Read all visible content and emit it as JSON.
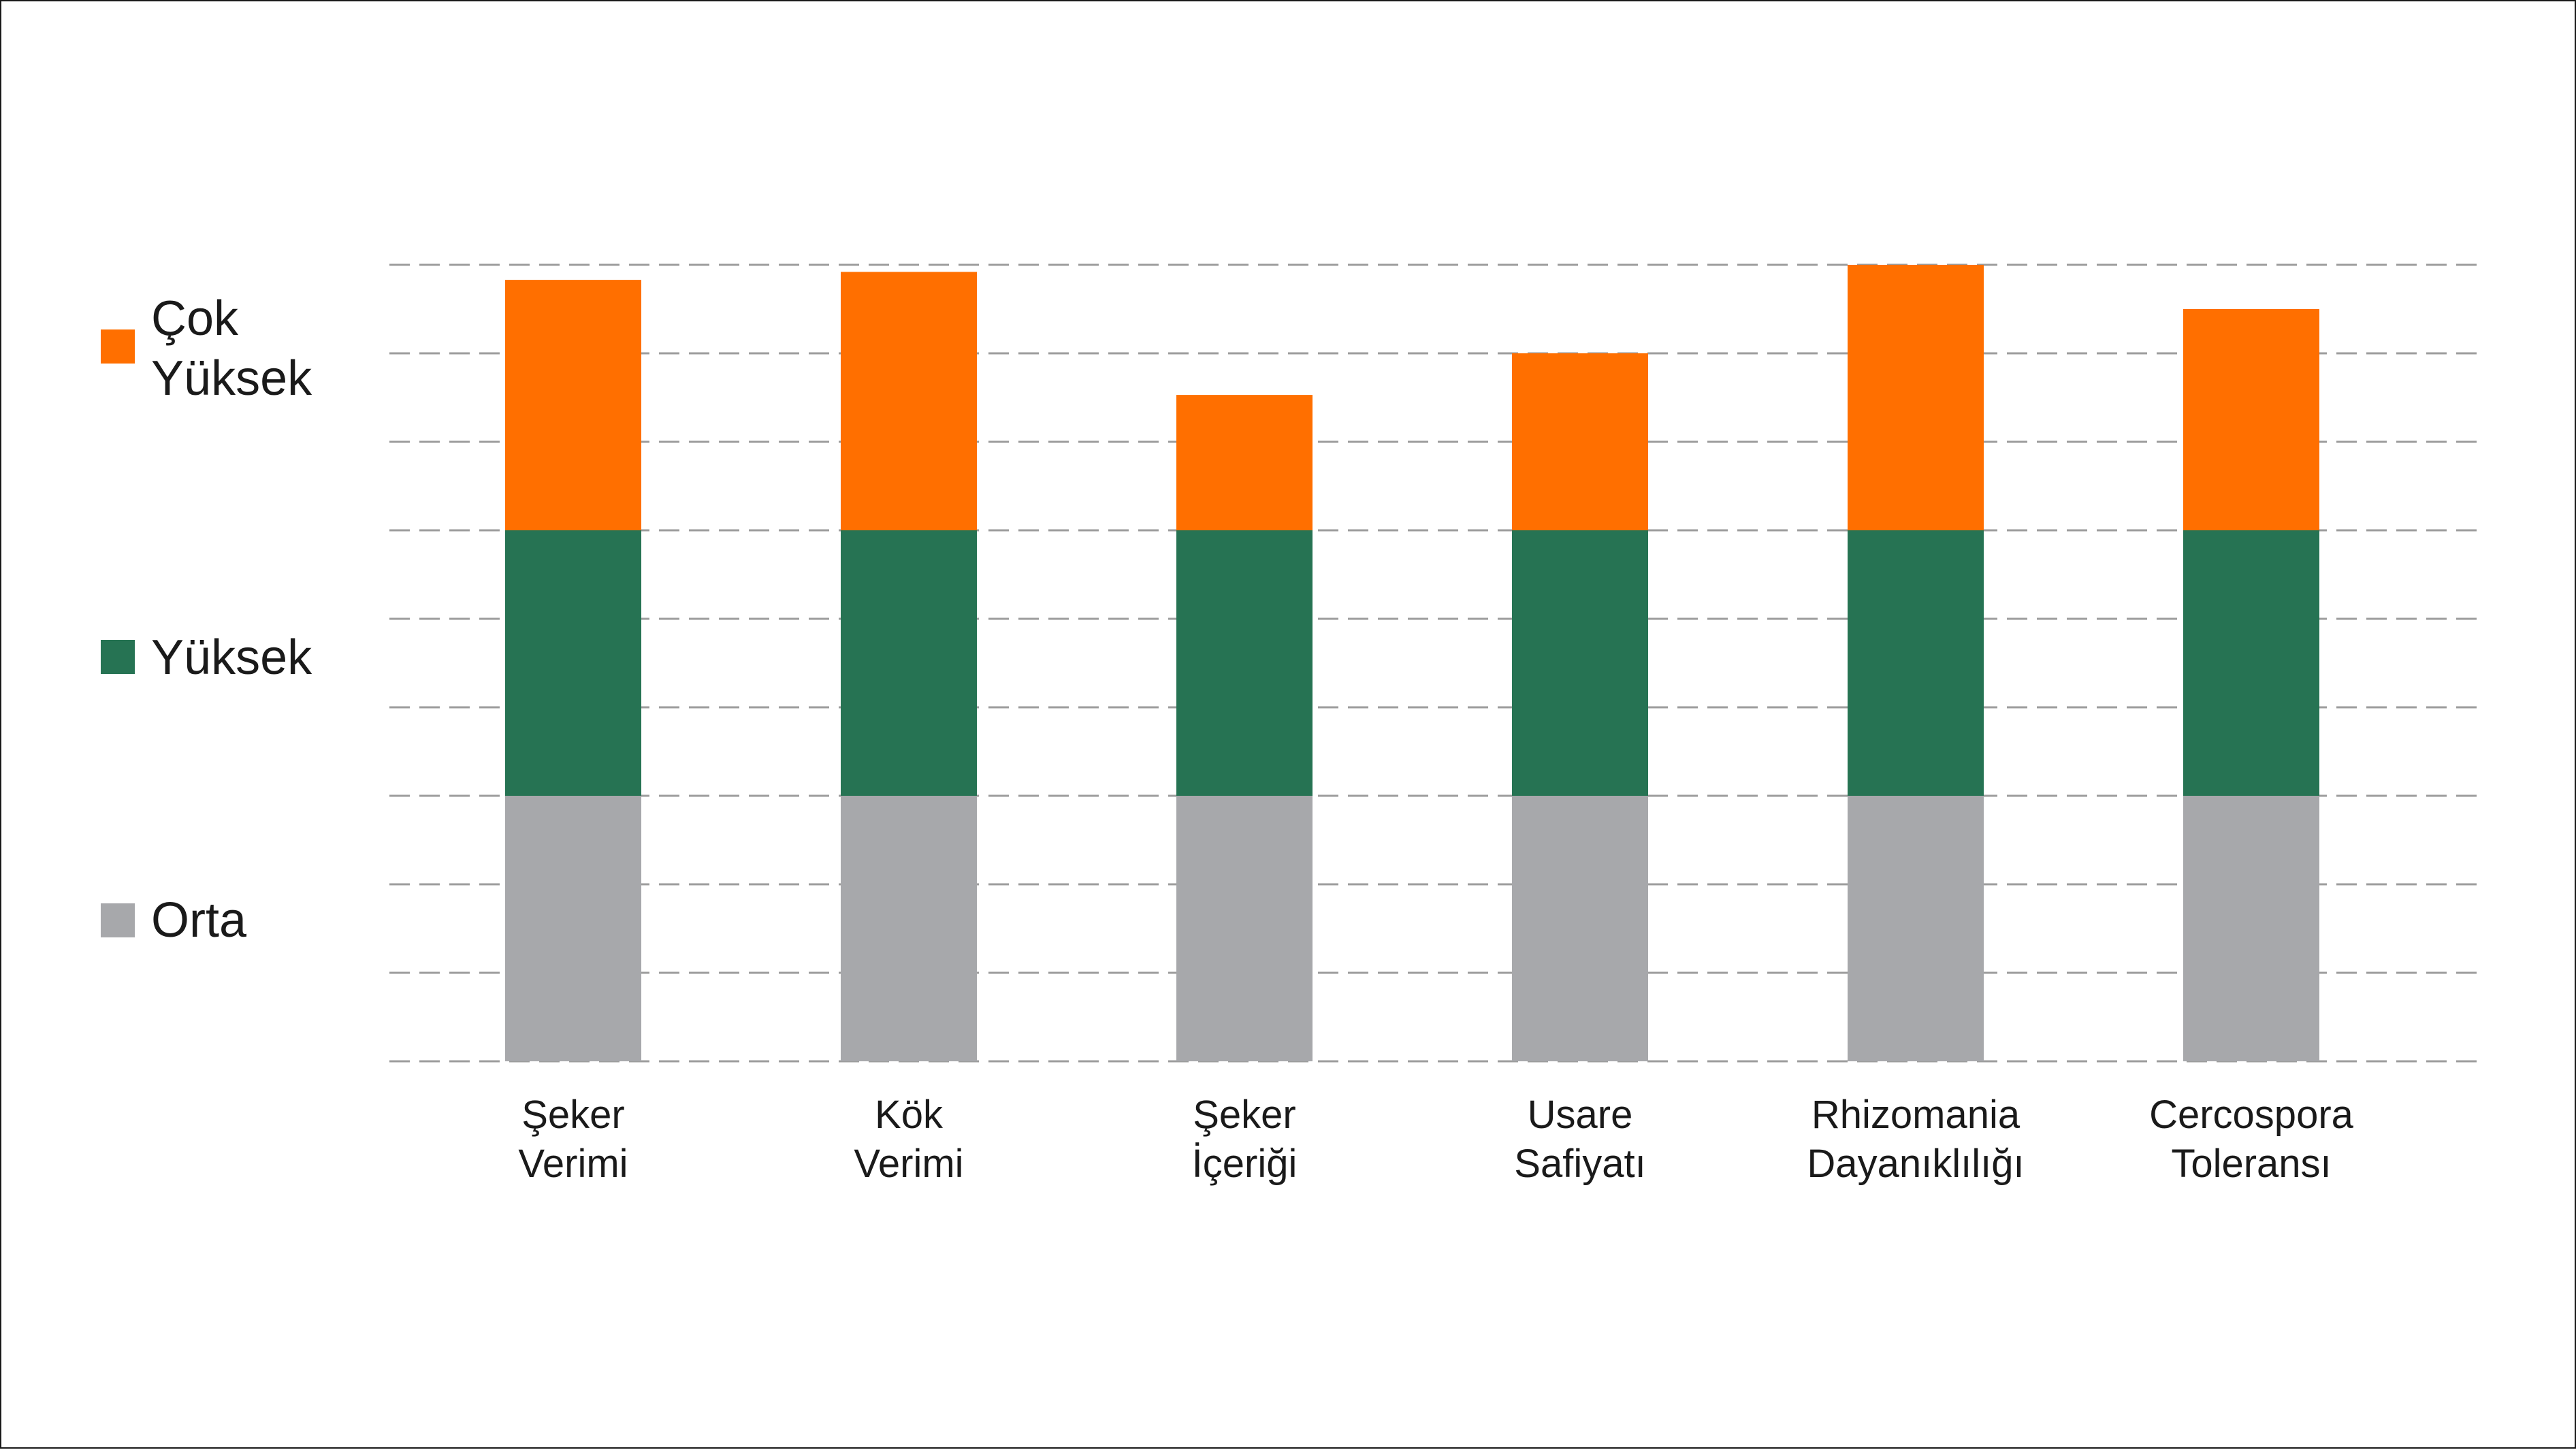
{
  "chart_data": {
    "type": "bar",
    "stacked": true,
    "title": "",
    "xlabel": "",
    "ylabel": "",
    "ylim": [
      0,
      9
    ],
    "grid": true,
    "legend_position": "left",
    "categories": [
      [
        "Şeker",
        "Verimi"
      ],
      [
        "Kök",
        "Verimi"
      ],
      [
        "Şeker",
        "İçeriği"
      ],
      [
        "Usare",
        "Safiyatı"
      ],
      [
        "Rhizomania",
        "Dayanıklılığı"
      ],
      [
        "Cercospora",
        "Toleransı"
      ]
    ],
    "series": [
      {
        "name": "Orta",
        "color": "#a7a8ab",
        "values": [
          3,
          3,
          3,
          3,
          3,
          3
        ]
      },
      {
        "name": "Yüksek",
        "color": "#267353",
        "values": [
          3,
          3,
          3,
          3,
          3,
          3
        ]
      },
      {
        "name": "Çok Yüksek",
        "color": "#ff6f00",
        "values": [
          2.83,
          2.92,
          1.53,
          2.0,
          3.0,
          2.5
        ]
      }
    ],
    "legend": [
      {
        "label_lines": [
          "Çok",
          "Yüksek"
        ],
        "color": "#ff6f00"
      },
      {
        "label_lines": [
          "Yüksek"
        ],
        "color": "#267353"
      },
      {
        "label_lines": [
          "Orta"
        ],
        "color": "#a7a8ab"
      }
    ]
  }
}
